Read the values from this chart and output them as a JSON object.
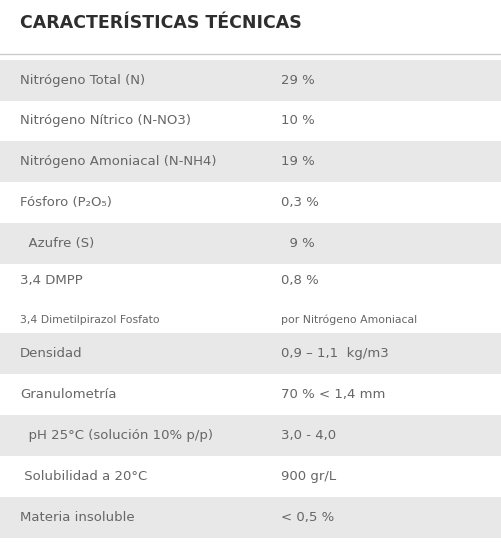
{
  "title": "CARACTERÍSTICAS TÉCNICAS",
  "rows": [
    {
      "label": "Nitrógeno Total (N)",
      "label2": "",
      "value": "29 %",
      "value2": "",
      "shaded": true
    },
    {
      "label": "Nitrógeno Nítrico (N-NO3)",
      "label2": "",
      "value": "10 %",
      "value2": "",
      "shaded": false
    },
    {
      "label": "Nitrógeno Amoniacal (N-NH4)",
      "label2": "",
      "value": "19 %",
      "value2": "",
      "shaded": true
    },
    {
      "label": "Fósforo (P₂O₅)",
      "label2": "",
      "value": "0,3 %",
      "value2": "",
      "shaded": false
    },
    {
      "label": "  Azufre (S)",
      "label2": "",
      "value": "  9 %",
      "value2": "",
      "shaded": true
    },
    {
      "label": "3,4 DMPP",
      "label2": "3,4 Dimetilpirazol Fosfato",
      "value": "0,8 %",
      "value2": "por Nitrógeno Amoniacal",
      "shaded": false
    },
    {
      "label": "Densidad",
      "label2": "",
      "value": "0,9 – 1,1  kg/m3",
      "value2": "",
      "shaded": true
    },
    {
      "label": "Granulometría",
      "label2": "",
      "value": "70 % < 1,4 mm",
      "value2": "",
      "shaded": false
    },
    {
      "label": "  pH 25°C (solución 10% p/p)",
      "label2": "",
      "value": "3,0 - 4,0",
      "value2": "",
      "shaded": true
    },
    {
      "label": " Solubilidad a 20°C",
      "label2": "",
      "value": "900 gr/L",
      "value2": "",
      "shaded": false
    },
    {
      "label": "Materia insoluble",
      "label2": "",
      "value": "< 0,5 %",
      "value2": "",
      "shaded": true
    }
  ],
  "bg_color": "#ffffff",
  "shaded_color": "#e8e8e8",
  "title_color": "#2e2e2e",
  "text_color": "#666666",
  "divider_color": "#cccccc",
  "title_fontsize": 12.5,
  "row_fontsize": 9.5,
  "sub_fontsize": 7.8,
  "value_split": 0.56
}
